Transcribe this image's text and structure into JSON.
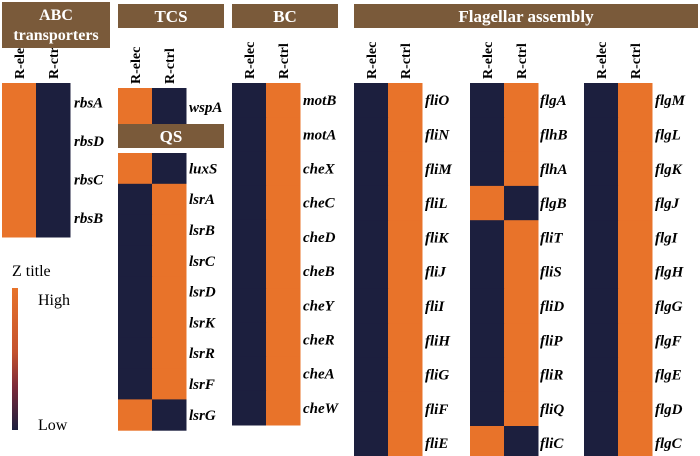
{
  "colors": {
    "high": "#e8732a",
    "low": "#1c1f3e",
    "header_bg": "#7a5a3a",
    "header_text": "#ffffff"
  },
  "legend": {
    "title": "Z title",
    "high_label": "High",
    "low_label": "Low"
  },
  "columns": [
    "R-elec",
    "R-ctrl"
  ],
  "chart_data": [
    {
      "type": "heatmap",
      "group": "ABC transporters",
      "title": "ABC transporters",
      "x": [
        "R-elec",
        "R-ctrl"
      ],
      "rows": [
        "rbsA",
        "rbsD",
        "rbsC",
        "rbsB"
      ],
      "values": [
        [
          1,
          0
        ],
        [
          1,
          0
        ],
        [
          1,
          0
        ],
        [
          1,
          0
        ]
      ]
    },
    {
      "type": "heatmap",
      "group": "TCS",
      "title": "TCS",
      "x": [
        "R-elec",
        "R-ctrl"
      ],
      "rows": [
        "wspA"
      ],
      "values": [
        [
          1,
          0
        ]
      ]
    },
    {
      "type": "heatmap",
      "group": "QS",
      "title": "QS",
      "x": [
        "R-elec",
        "R-ctrl"
      ],
      "rows": [
        "luxS",
        "lsrA",
        "lsrB",
        "lsrC",
        "lsrD",
        "lsrK",
        "lsrR",
        "lsrF",
        "lsrG"
      ],
      "values": [
        [
          1,
          0
        ],
        [
          0,
          1
        ],
        [
          0,
          1
        ],
        [
          0,
          1
        ],
        [
          0,
          1
        ],
        [
          0,
          1
        ],
        [
          0,
          1
        ],
        [
          0,
          1
        ],
        [
          1,
          0
        ]
      ]
    },
    {
      "type": "heatmap",
      "group": "BC",
      "title": "BC",
      "x": [
        "R-elec",
        "R-ctrl"
      ],
      "rows": [
        "motB",
        "motA",
        "cheX",
        "cheC",
        "cheD",
        "cheB",
        "cheY",
        "cheR",
        "cheA",
        "cheW"
      ],
      "values": [
        [
          0,
          1
        ],
        [
          0,
          1
        ],
        [
          0,
          1
        ],
        [
          0,
          1
        ],
        [
          0,
          1
        ],
        [
          0,
          1
        ],
        [
          0,
          1
        ],
        [
          0,
          1
        ],
        [
          0,
          1
        ],
        [
          0,
          1
        ]
      ]
    },
    {
      "type": "heatmap",
      "group": "Flagellar assembly",
      "title": "Flagellar assembly",
      "x": [
        "R-elec",
        "R-ctrl"
      ],
      "rows": [
        "fliO",
        "fliN",
        "fliM",
        "fliL",
        "fliK",
        "fliJ",
        "fliI",
        "fliH",
        "fliG",
        "fliF",
        "fliE"
      ],
      "values": [
        [
          0,
          1
        ],
        [
          0,
          1
        ],
        [
          0,
          1
        ],
        [
          0,
          1
        ],
        [
          0,
          1
        ],
        [
          0,
          1
        ],
        [
          0,
          1
        ],
        [
          0,
          1
        ],
        [
          0,
          1
        ],
        [
          0,
          1
        ],
        [
          0,
          1
        ]
      ]
    },
    {
      "type": "heatmap",
      "group": "Flagellar assembly",
      "x": [
        "R-elec",
        "R-ctrl"
      ],
      "rows": [
        "flgA",
        "flhB",
        "flhA",
        "flgB",
        "fliT",
        "fliS",
        "fliD",
        "fliP",
        "fliR",
        "fliQ",
        "fliC"
      ],
      "values": [
        [
          0,
          1
        ],
        [
          0,
          1
        ],
        [
          0,
          1
        ],
        [
          1,
          0
        ],
        [
          0,
          1
        ],
        [
          0,
          1
        ],
        [
          0,
          1
        ],
        [
          0,
          1
        ],
        [
          0,
          1
        ],
        [
          0,
          1
        ],
        [
          1,
          0
        ]
      ]
    },
    {
      "type": "heatmap",
      "group": "Flagellar assembly",
      "x": [
        "R-elec",
        "R-ctrl"
      ],
      "rows": [
        "flgM",
        "flgL",
        "flgK",
        "flgJ",
        "flgI",
        "flgH",
        "flgG",
        "flgF",
        "flgE",
        "flgD",
        "flgC"
      ],
      "values": [
        [
          0,
          1
        ],
        [
          0,
          1
        ],
        [
          0,
          1
        ],
        [
          0,
          1
        ],
        [
          0,
          1
        ],
        [
          0,
          1
        ],
        [
          0,
          1
        ],
        [
          0,
          1
        ],
        [
          0,
          1
        ],
        [
          0,
          1
        ],
        [
          0,
          1
        ]
      ]
    }
  ]
}
